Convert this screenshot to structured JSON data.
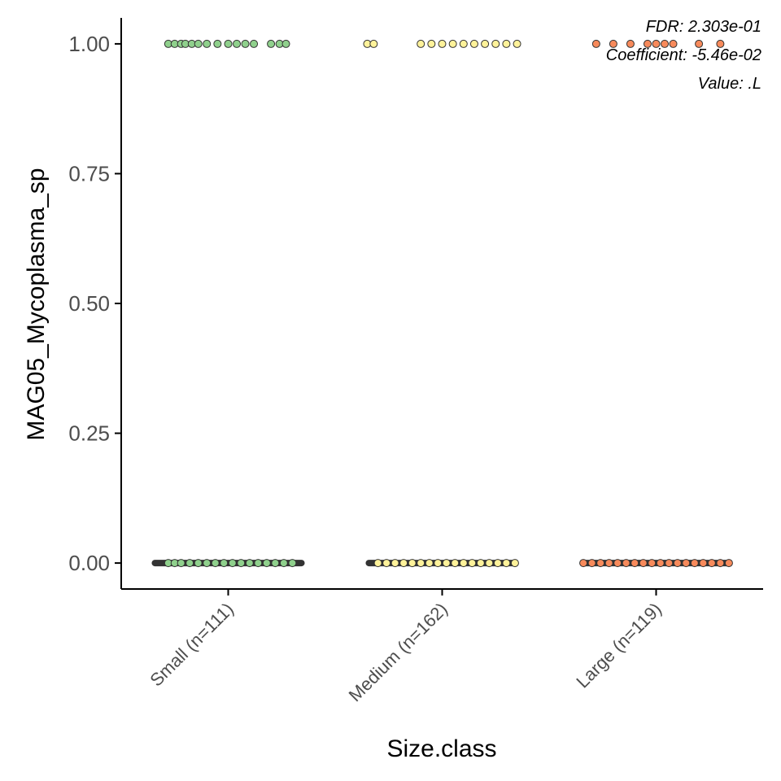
{
  "chart_data": {
    "type": "jitter-box",
    "ylabel": "MAG05_Mycoplasma_sp",
    "xlabel": "Size.class",
    "ylim": [
      -0.05,
      1.05
    ],
    "yticks": [
      "0.00",
      "0.25",
      "0.50",
      "0.75",
      "1.00"
    ],
    "ytick_values": [
      0,
      0.25,
      0.5,
      0.75,
      1
    ],
    "categories": [
      "Small (n=111)",
      "Medium (n=162)",
      "Large (n=119)"
    ],
    "grid": false,
    "annotations": [
      "FDR: 2.303e-01",
      "Coefficient: -5.46e-02",
      "Value: .L"
    ],
    "groups": [
      {
        "name": "Small (n=111)",
        "color": "#8fd08c",
        "box": {
          "q1": 0,
          "median": 0,
          "q3": 0,
          "whisker_low": 0,
          "whisker_high": 0
        },
        "points_at_one_offsets": [
          -0.28,
          -0.25,
          -0.22,
          -0.2,
          -0.17,
          -0.14,
          -0.1,
          -0.05,
          0.0,
          0.04,
          0.08,
          0.12,
          0.2,
          0.24,
          0.27
        ],
        "points_at_zero_offsets": [
          -0.28,
          -0.25,
          -0.22,
          -0.18,
          -0.14,
          -0.1,
          -0.06,
          -0.02,
          0.02,
          0.06,
          0.1,
          0.14,
          0.18,
          0.22,
          0.26,
          0.3
        ]
      },
      {
        "name": "Medium (n=162)",
        "color": "#fff29a",
        "box": {
          "q1": 0,
          "median": 0,
          "q3": 0,
          "whisker_low": 0,
          "whisker_high": 0
        },
        "points_at_one_offsets": [
          -0.35,
          -0.32,
          -0.1,
          -0.05,
          0.0,
          0.05,
          0.1,
          0.15,
          0.2,
          0.25,
          0.3,
          0.35
        ],
        "points_at_zero_offsets": [
          -0.3,
          -0.26,
          -0.22,
          -0.18,
          -0.14,
          -0.1,
          -0.06,
          -0.02,
          0.02,
          0.06,
          0.1,
          0.14,
          0.18,
          0.22,
          0.26,
          0.3,
          0.34
        ]
      },
      {
        "name": "Large (n=119)",
        "color": "#f78a5b",
        "box": {
          "q1": 0,
          "median": 0,
          "q3": 0,
          "whisker_low": 0,
          "whisker_high": 0
        },
        "points_at_one_offsets": [
          -0.28,
          -0.2,
          -0.12,
          -0.04,
          0.0,
          0.04,
          0.08,
          0.2,
          0.3
        ],
        "points_at_zero_offsets": [
          -0.34,
          -0.3,
          -0.26,
          -0.22,
          -0.18,
          -0.14,
          -0.1,
          -0.06,
          -0.02,
          0.02,
          0.06,
          0.1,
          0.14,
          0.18,
          0.22,
          0.26,
          0.3,
          0.34
        ]
      }
    ]
  }
}
